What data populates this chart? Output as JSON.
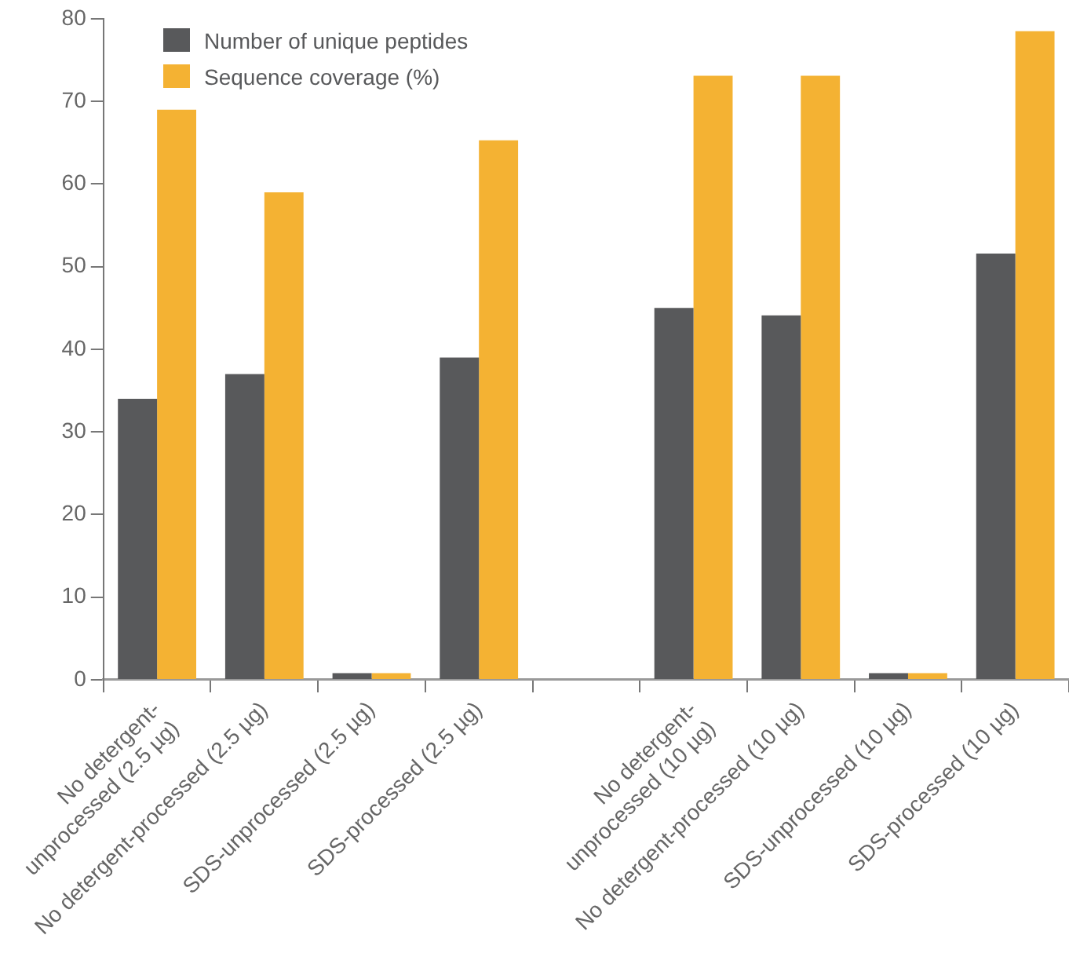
{
  "chart_data": {
    "type": "bar",
    "categories": [
      "No detergent-\nunprocessed (2.5 µg)",
      "No detergent-processed (2.5 µg)",
      "SDS-unprocessed (2.5 µg)",
      "SDS-processed (2.5 µg)",
      null,
      "No detergent-\nunprocessed (10 µg)",
      "No detergent-processed (10 µg)",
      "SDS-unprocessed (10 µg)",
      "SDS-processed (10 µg)"
    ],
    "series": [
      {
        "name": "Number of unique peptides",
        "color": "#58595b",
        "values": [
          34,
          37,
          0.8,
          39,
          null,
          45,
          44.1,
          0.8,
          51.6
        ]
      },
      {
        "name": "Sequence coverage (%)",
        "color": "#f4b233",
        "values": [
          69,
          59,
          0.8,
          65.3,
          null,
          73.1,
          73.1,
          0.8,
          78.5
        ]
      }
    ],
    "ylim": [
      0,
      80
    ],
    "yticks": [
      0,
      10,
      20,
      30,
      40,
      50,
      60,
      70,
      80
    ],
    "grid": false,
    "legend": "top left"
  }
}
